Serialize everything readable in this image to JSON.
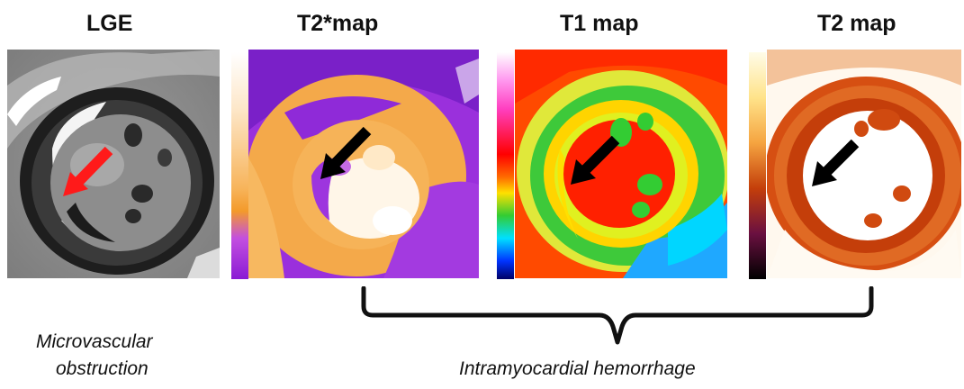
{
  "panels": [
    {
      "title": "LGE",
      "arrow_color": "#ff1a1a",
      "icon": "arrow-icon"
    },
    {
      "title": "T2*map",
      "arrow_color": "#000000",
      "icon": "arrow-icon"
    },
    {
      "title": "T1 map",
      "arrow_color": "#000000",
      "icon": "arrow-icon"
    },
    {
      "title": "T2 map",
      "arrow_color": "#000000",
      "icon": "arrow-icon"
    }
  ],
  "captions": {
    "left_line1": "Microvascular",
    "left_line2": "obstruction",
    "right": "Intramyocardial hemorrhage"
  },
  "colors": {
    "lge_arrow": "#ff1a1a",
    "map_arrow": "#000000",
    "t2star_bg": "#f3a544",
    "t2star_dark": "#8a2be2",
    "t1_red": "#ff2a00",
    "t1_green": "#33cc33",
    "t2_dark": "#c43e0a",
    "t2_light": "#fffaf2"
  }
}
